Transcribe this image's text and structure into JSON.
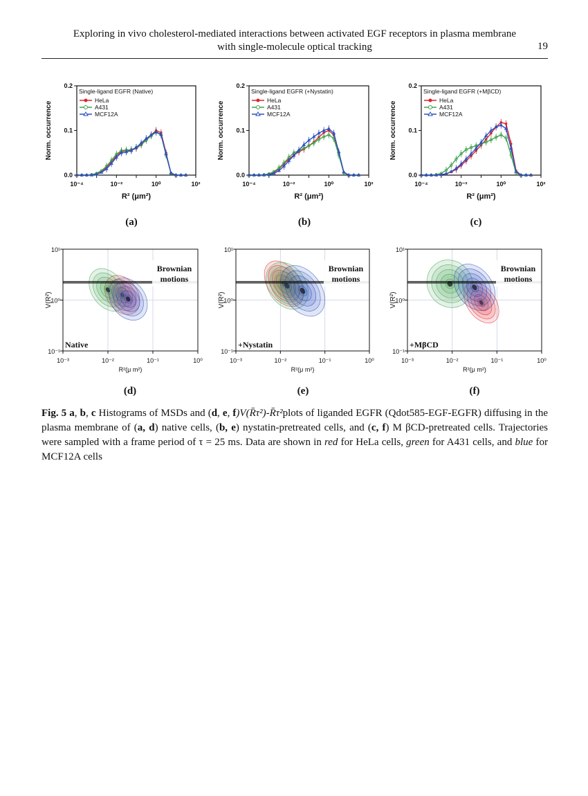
{
  "header": {
    "line1": "Exploring in vivo cholesterol-mediated interactions between activated EGF receptors in plasma membrane",
    "line2": "with single-molecule optical tracking",
    "page_number": "19"
  },
  "colors": {
    "hela": "#e0242a",
    "a431": "#3fa34d",
    "mcf12a": "#2a4fbf"
  },
  "chart_data": [
    {
      "type": "line",
      "panel": "(a)",
      "legend_title": "Single-ligand EGFR (Native)",
      "xlabel": "R² (μm²)",
      "ylabel": "Norm. occurrence",
      "x_ticks": [
        "10⁻⁴",
        "10⁻²",
        "10⁰",
        "10²"
      ],
      "y_ticks": [
        "0.0",
        "0.1",
        "0.2"
      ],
      "xlim_log10": [
        -4,
        2
      ],
      "ylim": [
        0,
        0.2
      ],
      "x_log10": [
        -4,
        -3.75,
        -3.5,
        -3.25,
        -3,
        -2.75,
        -2.5,
        -2.25,
        -2,
        -1.75,
        -1.5,
        -1.25,
        -1,
        -0.75,
        -0.5,
        -0.25,
        0,
        0.25,
        0.5,
        0.75,
        1,
        1.25,
        1.5
      ],
      "series": [
        {
          "name": "HeLa",
          "color": "#e0242a",
          "marker": "circle",
          "values": [
            0,
            0,
            0,
            0.001,
            0.003,
            0.008,
            0.017,
            0.03,
            0.043,
            0.053,
            0.055,
            0.056,
            0.06,
            0.068,
            0.08,
            0.09,
            0.1,
            0.095,
            0.05,
            0.004,
            0,
            0,
            0
          ]
        },
        {
          "name": "A431",
          "color": "#3fa34d",
          "marker": "circle-open",
          "values": [
            0,
            0,
            0,
            0.001,
            0.004,
            0.01,
            0.02,
            0.033,
            0.047,
            0.055,
            0.056,
            0.057,
            0.062,
            0.068,
            0.078,
            0.088,
            0.096,
            0.09,
            0.045,
            0.004,
            0,
            0,
            0
          ]
        },
        {
          "name": "MCF12A",
          "color": "#2a4fbf",
          "marker": "triangle-open",
          "values": [
            0,
            0,
            0,
            0,
            0.002,
            0.006,
            0.014,
            0.026,
            0.04,
            0.05,
            0.052,
            0.055,
            0.062,
            0.072,
            0.082,
            0.09,
            0.097,
            0.091,
            0.048,
            0.005,
            0,
            0,
            0
          ]
        }
      ]
    },
    {
      "type": "line",
      "panel": "(b)",
      "legend_title": "Single-ligand EGFR (+Nystatin)",
      "xlabel": "R² (μm²)",
      "ylabel": "Norm. occurrence",
      "x_ticks": [
        "10⁻⁴",
        "10⁻²",
        "10⁰",
        "10²"
      ],
      "y_ticks": [
        "0.0",
        "0.1",
        "0.2"
      ],
      "xlim_log10": [
        -4,
        2
      ],
      "ylim": [
        0,
        0.2
      ],
      "x_log10": [
        -4,
        -3.75,
        -3.5,
        -3.25,
        -3,
        -2.75,
        -2.5,
        -2.25,
        -2,
        -1.75,
        -1.5,
        -1.25,
        -1,
        -0.75,
        -0.5,
        -0.25,
        0,
        0.25,
        0.5,
        0.75,
        1,
        1.25,
        1.5
      ],
      "series": [
        {
          "name": "HeLa",
          "color": "#e0242a",
          "marker": "circle",
          "values": [
            0,
            0,
            0,
            0,
            0.002,
            0.006,
            0.014,
            0.025,
            0.036,
            0.045,
            0.052,
            0.058,
            0.066,
            0.074,
            0.085,
            0.095,
            0.1,
            0.09,
            0.05,
            0.006,
            0,
            0,
            0
          ]
        },
        {
          "name": "A431",
          "color": "#3fa34d",
          "marker": "circle-open",
          "values": [
            0,
            0,
            0,
            0.001,
            0.003,
            0.008,
            0.016,
            0.027,
            0.04,
            0.05,
            0.055,
            0.06,
            0.066,
            0.072,
            0.08,
            0.086,
            0.09,
            0.082,
            0.045,
            0.005,
            0,
            0,
            0
          ]
        },
        {
          "name": "MCF12A",
          "color": "#2a4fbf",
          "marker": "triangle-open",
          "values": [
            0,
            0,
            0,
            0,
            0.001,
            0.004,
            0.01,
            0.02,
            0.032,
            0.044,
            0.056,
            0.068,
            0.078,
            0.086,
            0.094,
            0.1,
            0.104,
            0.094,
            0.052,
            0.007,
            0,
            0,
            0
          ]
        }
      ]
    },
    {
      "type": "line",
      "panel": "(c)",
      "legend_title": "Single-ligand EGFR (+MβCD)",
      "xlabel": "R² (μm²)",
      "ylabel": "Norm. occurrence",
      "x_ticks": [
        "10⁻⁴",
        "10⁻²",
        "10⁰",
        "10²"
      ],
      "y_ticks": [
        "0.0",
        "0.1",
        "0.2"
      ],
      "xlim_log10": [
        -4,
        2
      ],
      "ylim": [
        0,
        0.2
      ],
      "x_log10": [
        -4,
        -3.75,
        -3.5,
        -3.25,
        -3,
        -2.75,
        -2.5,
        -2.25,
        -2,
        -1.75,
        -1.5,
        -1.25,
        -1,
        -0.75,
        -0.5,
        -0.25,
        0,
        0.25,
        0.5,
        0.75,
        1,
        1.25,
        1.5
      ],
      "series": [
        {
          "name": "HeLa",
          "color": "#e0242a",
          "marker": "circle",
          "values": [
            0,
            0,
            0,
            0,
            0.001,
            0.003,
            0.007,
            0.013,
            0.022,
            0.032,
            0.043,
            0.055,
            0.067,
            0.08,
            0.094,
            0.108,
            0.118,
            0.115,
            0.07,
            0.01,
            0,
            0,
            0
          ]
        },
        {
          "name": "A431",
          "color": "#3fa34d",
          "marker": "circle-open",
          "values": [
            0,
            0,
            0,
            0.001,
            0.004,
            0.011,
            0.022,
            0.036,
            0.048,
            0.057,
            0.062,
            0.066,
            0.07,
            0.074,
            0.079,
            0.085,
            0.09,
            0.083,
            0.045,
            0.005,
            0,
            0,
            0
          ]
        },
        {
          "name": "MCF12A",
          "color": "#2a4fbf",
          "marker": "triangle-open",
          "values": [
            0,
            0,
            0,
            0,
            0.001,
            0.003,
            0.008,
            0.015,
            0.025,
            0.036,
            0.048,
            0.06,
            0.073,
            0.088,
            0.1,
            0.108,
            0.112,
            0.104,
            0.06,
            0.008,
            0,
            0,
            0
          ]
        }
      ]
    },
    {
      "type": "scatter",
      "subtype": "density-contour",
      "panel": "(d)",
      "annotation": "Native",
      "region_label": [
        "Brownian",
        "motions"
      ],
      "xlabel": "R²(μ m²)",
      "ylabel": "V(R²)",
      "x_ticks": [
        "10⁻³",
        "10⁻²",
        "10⁻¹",
        "10⁰"
      ],
      "y_ticks": [
        "10⁻¹",
        "10⁰",
        "10¹"
      ],
      "xlim_log10": [
        -3,
        0
      ],
      "ylim_log10": [
        -1,
        1
      ],
      "threshold_log10": 0.35,
      "blobs": [
        {
          "name": "HeLa",
          "color": "#e0242a",
          "cx_log10": -1.68,
          "cy_log10": 0.1,
          "rx": 0.34,
          "ry": 0.42
        },
        {
          "name": "A431",
          "color": "#3fa34d",
          "cx_log10": -2.0,
          "cy_log10": 0.2,
          "rx": 0.36,
          "ry": 0.46
        },
        {
          "name": "MCF12A",
          "color": "#2a4fbf",
          "cx_log10": -1.55,
          "cy_log10": 0.02,
          "rx": 0.38,
          "ry": 0.45
        }
      ]
    },
    {
      "type": "scatter",
      "subtype": "density-contour",
      "panel": "(e)",
      "annotation": "+Nystatin",
      "region_label": [
        "Brownian",
        "motions"
      ],
      "xlabel": "R²(μ m²)",
      "ylabel": "V(R²)",
      "x_ticks": [
        "10⁻³",
        "10⁻²",
        "10⁻¹",
        "10⁰"
      ],
      "y_ticks": [
        "10⁻¹",
        "10⁰",
        "10¹"
      ],
      "xlim_log10": [
        -3,
        0
      ],
      "ylim_log10": [
        -1,
        1
      ],
      "threshold_log10": 0.35,
      "blobs": [
        {
          "name": "HeLa",
          "color": "#e0242a",
          "cx_log10": -1.92,
          "cy_log10": 0.32,
          "rx": 0.36,
          "ry": 0.5
        },
        {
          "name": "A431",
          "color": "#3fa34d",
          "cx_log10": -1.85,
          "cy_log10": 0.28,
          "rx": 0.42,
          "ry": 0.5
        },
        {
          "name": "MCF12A",
          "color": "#2a4fbf",
          "cx_log10": -1.5,
          "cy_log10": 0.18,
          "rx": 0.42,
          "ry": 0.55
        }
      ]
    },
    {
      "type": "scatter",
      "subtype": "density-contour",
      "panel": "(f)",
      "annotation": "+MβCD",
      "region_label": [
        "Brownian",
        "motions"
      ],
      "xlabel": "R²(μ m²)",
      "ylabel": "V(R²)",
      "x_ticks": [
        "10⁻³",
        "10⁻²",
        "10⁻¹",
        "10⁰"
      ],
      "y_ticks": [
        "10⁻¹",
        "10⁰",
        "10¹"
      ],
      "xlim_log10": [
        -3,
        0
      ],
      "ylim_log10": [
        -1,
        1
      ],
      "threshold_log10": 0.35,
      "blobs": [
        {
          "name": "HeLa",
          "color": "#e0242a",
          "cx_log10": -1.35,
          "cy_log10": -0.05,
          "rx": 0.32,
          "ry": 0.45
        },
        {
          "name": "A431",
          "color": "#3fa34d",
          "cx_log10": -2.05,
          "cy_log10": 0.32,
          "rx": 0.5,
          "ry": 0.48
        },
        {
          "name": "MCF12A",
          "color": "#2a4fbf",
          "cx_log10": -1.5,
          "cy_log10": 0.25,
          "rx": 0.4,
          "ry": 0.5
        }
      ]
    }
  ],
  "panel_labels": [
    "(a)",
    "(b)",
    "(c)",
    "(d)",
    "(e)",
    "(f)"
  ],
  "caption": {
    "fig_label": "Fig. 5",
    "a": "a",
    "sep1": ", ",
    "b": "b",
    "sep2": ", ",
    "c": "c",
    "text1": " Histograms of MSDs and (",
    "d": "d",
    "e": "e",
    "f": "f",
    "formula": ")V(R̄τ²)-R̄τ²",
    "text2": "plots of liganded EGFR (Qdot585-EGF-EGFR) diffusing in the plasma membrane of (",
    "ad": "a, d",
    "text3": ") native cells, (",
    "be": "b, e",
    "text4": ") nystatin-pretreated cells, and (",
    "cf": "c, f",
    "text5": ") M βCD-pretreated cells. Trajectories were sampled with a frame period of τ = 25 ms. Data are shown in ",
    "red": "red",
    "text6": " for HeLa cells, ",
    "green": "green",
    "text7": " for A431 cells, and ",
    "blue": "blue",
    "text8": " for MCF12A cells"
  }
}
